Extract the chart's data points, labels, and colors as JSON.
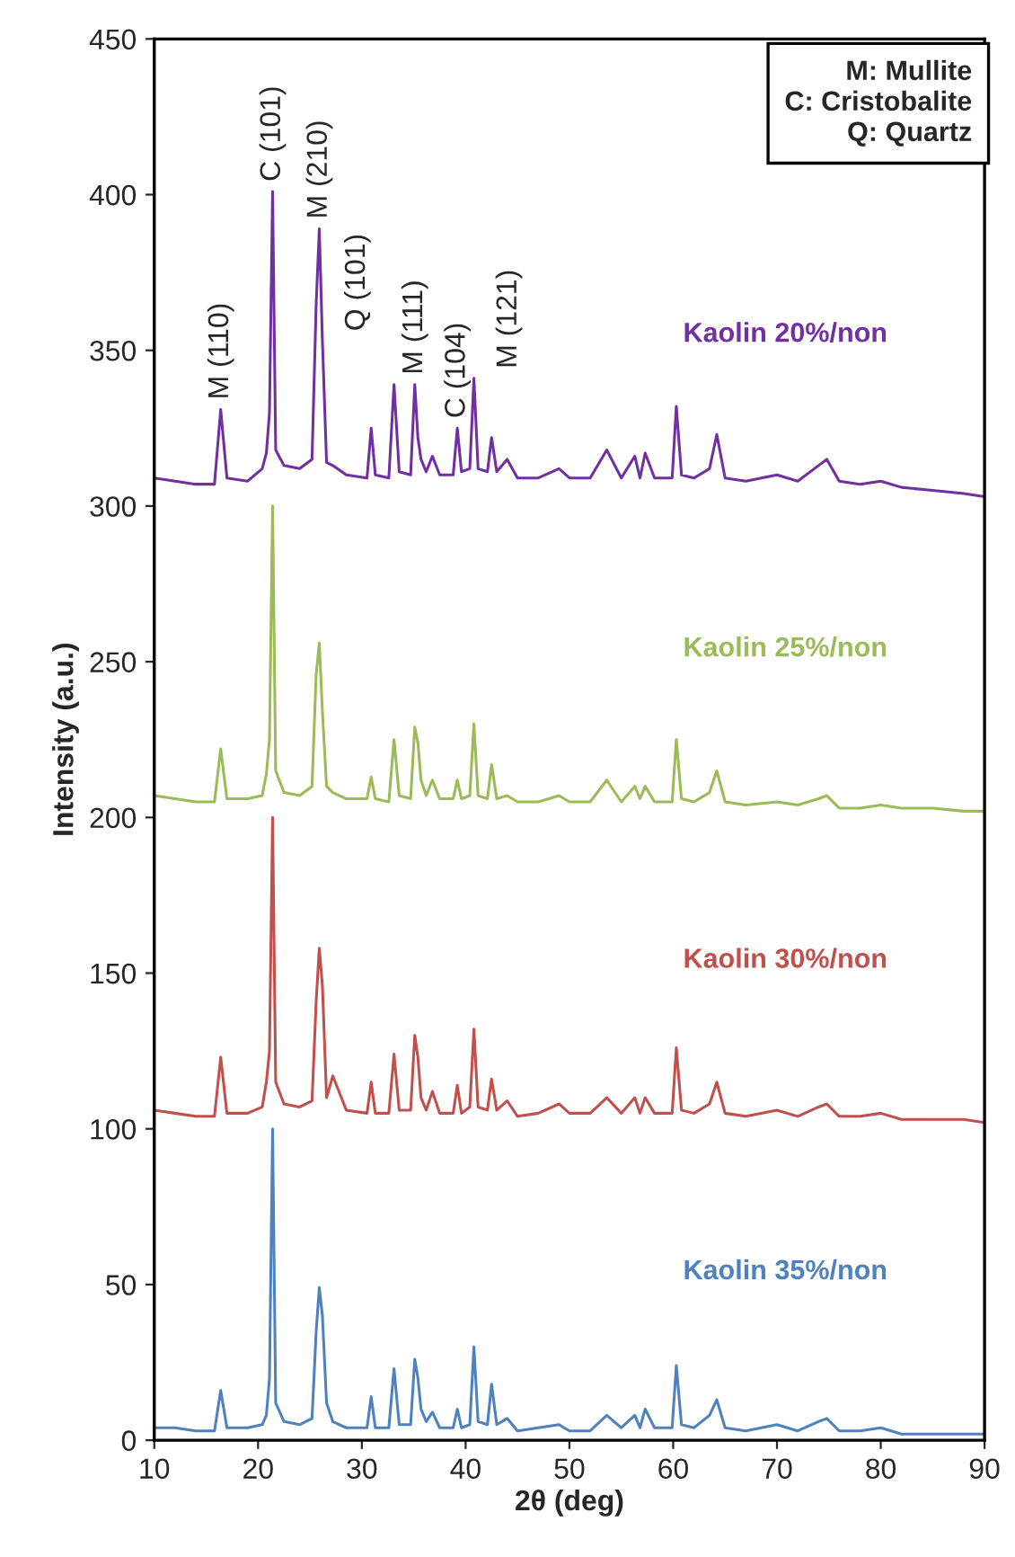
{
  "chart_data": {
    "type": "line",
    "xlabel": "2θ (deg)",
    "ylabel": "Intensity (a.u.)",
    "xlim": [
      10,
      90
    ],
    "xticks": [
      10,
      20,
      30,
      40,
      50,
      60,
      70,
      80,
      90
    ],
    "ylim": [
      0,
      450
    ],
    "yticks": [
      0,
      50,
      100,
      150,
      200,
      250,
      300,
      350,
      400,
      450
    ],
    "grid": false,
    "legend": false,
    "marker": "none",
    "line_style": "solid",
    "x": [
      10,
      12,
      14,
      15.8,
      16.4,
      17,
      19,
      20.4,
      20.8,
      21.1,
      21.4,
      21.7,
      22.5,
      24,
      25.2,
      25.6,
      25.9,
      26.2,
      26.6,
      27.2,
      28.5,
      30.5,
      30.9,
      31.3,
      32.6,
      33.1,
      33.6,
      34.7,
      35.1,
      35.4,
      35.7,
      36.2,
      36.8,
      37.5,
      38.8,
      39.2,
      39.6,
      40.4,
      40.8,
      41.2,
      42.1,
      42.5,
      43,
      44,
      45,
      47,
      49,
      50,
      52,
      53.6,
      55,
      56.3,
      56.8,
      57.3,
      58.2,
      59.9,
      60.3,
      60.8,
      62,
      63.5,
      64.2,
      65,
      67,
      70,
      72,
      74,
      74.8,
      76,
      78,
      80,
      82,
      85,
      88,
      90
    ],
    "series": [
      {
        "name": "Kaolin 20%/non",
        "color": "#7030a0",
        "values": [
          309,
          308,
          307,
          307,
          331,
          309,
          308,
          312,
          317,
          330,
          401,
          318,
          313,
          312,
          315,
          365,
          389,
          353,
          314,
          313,
          310,
          309,
          325,
          310,
          309,
          339,
          311,
          310,
          339,
          322,
          315,
          311,
          316,
          310,
          310,
          325,
          311,
          312,
          341,
          312,
          311,
          322,
          311,
          315,
          309,
          309,
          312,
          309,
          309,
          318,
          309,
          316,
          309,
          317,
          309,
          309,
          332,
          310,
          309,
          312,
          323,
          309,
          308,
          310,
          308,
          313,
          315,
          308,
          307,
          308,
          306,
          305,
          304,
          303
        ]
      },
      {
        "name": "Kaolin 25%/non",
        "color": "#9bbb59",
        "values": [
          207,
          206,
          205,
          205,
          222,
          206,
          206,
          207,
          214,
          225,
          300,
          215,
          208,
          207,
          210,
          246,
          256,
          234,
          210,
          208,
          206,
          206,
          213,
          206,
          205,
          225,
          207,
          206,
          229,
          224,
          212,
          207,
          212,
          206,
          206,
          212,
          206,
          207,
          230,
          207,
          206,
          217,
          206,
          207,
          205,
          205,
          207,
          205,
          205,
          212,
          205,
          210,
          206,
          210,
          205,
          205,
          225,
          206,
          205,
          208,
          215,
          205,
          204,
          205,
          204,
          206,
          207,
          203,
          203,
          204,
          203,
          203,
          202,
          202
        ]
      },
      {
        "name": "Kaolin 30%/non",
        "color": "#c0504d",
        "values": [
          106,
          105,
          104,
          104,
          123,
          105,
          105,
          107,
          115,
          125,
          200,
          115,
          108,
          107,
          109,
          141,
          158,
          146,
          110,
          117,
          106,
          105,
          115,
          105,
          105,
          124,
          106,
          106,
          130,
          123,
          110,
          106,
          112,
          105,
          105,
          114,
          105,
          107,
          132,
          107,
          106,
          116,
          106,
          109,
          104,
          105,
          108,
          105,
          105,
          110,
          105,
          110,
          105,
          110,
          105,
          105,
          126,
          106,
          105,
          108,
          115,
          105,
          104,
          106,
          104,
          107,
          108,
          104,
          104,
          105,
          103,
          103,
          103,
          102
        ]
      },
      {
        "name": "Kaolin 35%/non",
        "color": "#4f81bd",
        "values": [
          4,
          4,
          3,
          3,
          16,
          4,
          4,
          5,
          8,
          20,
          100,
          12,
          6,
          5,
          7,
          35,
          49,
          40,
          12,
          6,
          4,
          4,
          14,
          4,
          4,
          23,
          5,
          5,
          26,
          20,
          10,
          6,
          9,
          4,
          4,
          10,
          4,
          5,
          30,
          6,
          5,
          18,
          5,
          7,
          3,
          4,
          5,
          3,
          3,
          8,
          4,
          8,
          4,
          10,
          4,
          4,
          24,
          5,
          4,
          8,
          13,
          4,
          3,
          5,
          3,
          6,
          7,
          3,
          3,
          4,
          2,
          2,
          2,
          2
        ]
      }
    ],
    "annotations": [
      {
        "text": "M (110)",
        "x": 16.4,
        "y": 331
      },
      {
        "text": "C (101)",
        "x": 21.4,
        "y": 401
      },
      {
        "text": "M (210)",
        "x": 25.9,
        "y": 389
      },
      {
        "text": "Q (101)",
        "x": 26.2,
        "y": 353
      },
      {
        "text": "M (111)",
        "x": 35.1,
        "y": 339
      },
      {
        "text": "C (104)",
        "x": 39.2,
        "y": 325
      },
      {
        "text": "M (121)",
        "x": 40.8,
        "y": 341
      },
      "M: Mullite",
      "C: Cristobalite",
      "Q: Quartz"
    ]
  }
}
